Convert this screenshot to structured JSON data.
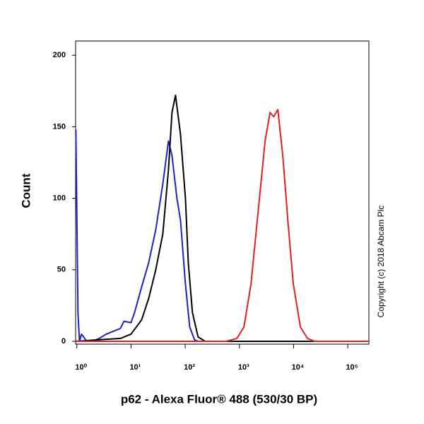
{
  "chart_data": {
    "type": "line",
    "x_label": "p62 - Alexa Fluor® 488 (530/30 BP)",
    "y_label": "Count",
    "annotation": "Copyright (c) 2018 Abcam Plc",
    "xscale": "log",
    "xlim": [
      0.95,
      245000
    ],
    "ylim": [
      -2,
      210
    ],
    "xticks": [
      {
        "value": 1,
        "label": "10⁰"
      },
      {
        "value": 10,
        "label": "10¹"
      },
      {
        "value": 100,
        "label": "10²"
      },
      {
        "value": 1000,
        "label": "10³"
      },
      {
        "value": 10000,
        "label": "10⁴"
      },
      {
        "value": 100000,
        "label": "10⁵"
      }
    ],
    "yticks": [
      0,
      50,
      100,
      150,
      200
    ],
    "series": [
      {
        "color": "#1f1fcc",
        "x": [
          0.96,
          1.05,
          1.12,
          1.22,
          1.34,
          1.51,
          1.92,
          2.59,
          3.5,
          4.72,
          6.38,
          7.41,
          10,
          11.6,
          15.7,
          21.2,
          28.6,
          38.6,
          49.1,
          57,
          70.3,
          81.7,
          101,
          121,
          149,
          173,
          245000
        ],
        "values": [
          148,
          20,
          0,
          5,
          3,
          0,
          0,
          2,
          5,
          7,
          9,
          14,
          13,
          20,
          38,
          55,
          78,
          110,
          140,
          130,
          100,
          85,
          40,
          10,
          1,
          0,
          0
        ]
      },
      {
        "color": "#000000",
        "x": [
          0.95,
          6.38,
          10,
          15.7,
          21.2,
          28.6,
          38.6,
          49.1,
          57,
          66.2,
          81.7,
          101,
          114,
          136,
          173,
          233,
          245000
        ],
        "values": [
          0,
          2,
          5,
          15,
          30,
          50,
          75,
          120,
          160,
          172,
          145,
          100,
          55,
          20,
          3,
          0,
          0
        ]
      },
      {
        "color": "#e02020",
        "x": [
          0.95,
          573,
          899,
          1213,
          1637,
          2208,
          2979,
          3681,
          4276,
          5117,
          6310,
          8017,
          9886,
          13370,
          18030,
          24320,
          245000
        ],
        "values": [
          0,
          0,
          2,
          10,
          40,
          90,
          140,
          160,
          157,
          162,
          130,
          80,
          40,
          10,
          2,
          0,
          0
        ]
      }
    ]
  }
}
